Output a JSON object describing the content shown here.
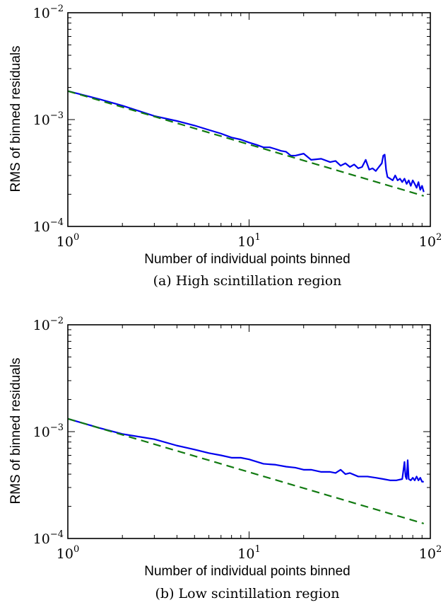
{
  "chart_data": [
    {
      "type": "line",
      "caption": "(a) High scintillation region",
      "xlabel": "Number of individual points binned",
      "ylabel": "RMS of binned residuals",
      "xscale": "log",
      "yscale": "log",
      "xlim": [
        1,
        100
      ],
      "ylim": [
        0.0001,
        0.01
      ],
      "x_ticks": [
        {
          "value": 1,
          "label_base": "10",
          "label_exp": "0"
        },
        {
          "value": 10,
          "label_base": "10",
          "label_exp": "1"
        },
        {
          "value": 100,
          "label_base": "10",
          "label_exp": "2"
        }
      ],
      "y_ticks": [
        {
          "value": 0.01,
          "label_base": "10",
          "label_exp": "−2"
        },
        {
          "value": 0.001,
          "label_base": "10",
          "label_exp": "−3"
        },
        {
          "value": 0.0001,
          "label_base": "10",
          "label_exp": "−4"
        }
      ],
      "grid": false,
      "series": [
        {
          "style": "solid",
          "color": "#0000ee",
          "x": [
            1,
            1.5,
            2,
            3,
            4,
            5,
            6,
            7,
            8,
            9,
            10,
            11,
            12,
            13,
            14,
            15,
            16,
            17,
            18,
            20,
            22,
            25,
            28,
            30,
            32,
            34,
            36,
            38,
            40,
            42,
            44,
            46,
            48,
            50,
            52,
            54,
            55,
            56,
            57,
            58,
            60,
            62,
            64,
            66,
            68,
            70,
            72,
            74,
            76,
            78,
            80,
            82,
            84,
            86,
            88,
            90,
            92
          ],
          "y": [
            0.00185,
            0.00155,
            0.00135,
            0.00108,
            0.00097,
            0.00088,
            0.0008,
            0.00074,
            0.00068,
            0.00065,
            0.00061,
            0.00058,
            0.00055,
            0.00055,
            0.00053,
            0.00051,
            0.0005,
            0.00046,
            0.00046,
            0.00048,
            0.00042,
            0.00043,
            0.0004,
            0.00041,
            0.00037,
            0.00039,
            0.00036,
            0.00038,
            0.00035,
            0.00036,
            0.00042,
            0.00034,
            0.00035,
            0.00033,
            0.00036,
            0.00039,
            0.00046,
            0.00047,
            0.00034,
            0.00029,
            0.00028,
            0.00027,
            0.0003,
            0.00027,
            0.00028,
            0.00026,
            0.00028,
            0.00025,
            0.00027,
            0.00024,
            0.00027,
            0.00025,
            0.00023,
            0.00026,
            0.00022,
            0.00024,
            0.00021
          ]
        },
        {
          "style": "dashed",
          "color": "#117a11",
          "x": [
            1,
            92
          ],
          "y": [
            0.00185,
            0.000193
          ]
        }
      ]
    },
    {
      "type": "line",
      "caption": "(b) Low scintillation region",
      "xlabel": "Number of individual points binned",
      "ylabel": "RMS of binned residuals",
      "xscale": "log",
      "yscale": "log",
      "xlim": [
        1,
        100
      ],
      "ylim": [
        0.0001,
        0.01
      ],
      "x_ticks": [
        {
          "value": 1,
          "label_base": "10",
          "label_exp": "0"
        },
        {
          "value": 10,
          "label_base": "10",
          "label_exp": "1"
        },
        {
          "value": 100,
          "label_base": "10",
          "label_exp": "2"
        }
      ],
      "y_ticks": [
        {
          "value": 0.01,
          "label_base": "10",
          "label_exp": "−2"
        },
        {
          "value": 0.001,
          "label_base": "10",
          "label_exp": "−3"
        },
        {
          "value": 0.0001,
          "label_base": "10",
          "label_exp": "−4"
        }
      ],
      "grid": false,
      "series": [
        {
          "style": "solid",
          "color": "#0000ee",
          "x": [
            1,
            1.5,
            2,
            3,
            4,
            5,
            6,
            7,
            8,
            9,
            10,
            12,
            14,
            16,
            18,
            20,
            22,
            25,
            28,
            30,
            32,
            34,
            36,
            40,
            45,
            50,
            55,
            60,
            65,
            70,
            72,
            73,
            74,
            75,
            76,
            78,
            80,
            82,
            84,
            86,
            88,
            90,
            92
          ],
          "y": [
            0.00132,
            0.00108,
            0.00095,
            0.00085,
            0.00074,
            0.00068,
            0.00063,
            0.0006,
            0.00057,
            0.00057,
            0.00055,
            0.0005,
            0.00049,
            0.00047,
            0.00046,
            0.00044,
            0.00044,
            0.00042,
            0.00042,
            0.00041,
            0.00044,
            0.0004,
            0.00041,
            0.00038,
            0.00038,
            0.00037,
            0.00036,
            0.00035,
            0.00035,
            0.00036,
            0.00052,
            0.00038,
            0.00036,
            0.00054,
            0.00036,
            0.00035,
            0.00037,
            0.00035,
            0.00038,
            0.00035,
            0.00037,
            0.00034,
            0.00034
          ]
        },
        {
          "style": "dashed",
          "color": "#117a11",
          "x": [
            1,
            92
          ],
          "y": [
            0.00132,
            0.000138
          ]
        }
      ]
    }
  ]
}
